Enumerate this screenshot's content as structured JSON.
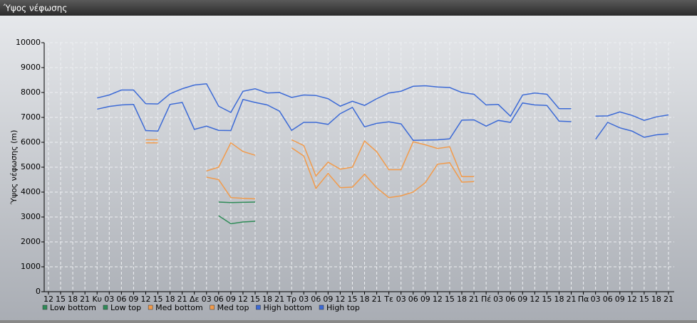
{
  "chart_data": {
    "type": "line",
    "title": "Ύψος νέφωσης",
    "y_label": "Ύψος νέφωσης (m)",
    "categories": [
      "12",
      "15",
      "18",
      "21",
      "Κυ",
      "03",
      "06",
      "09",
      "12",
      "15",
      "18",
      "21",
      "Δε",
      "03",
      "06",
      "09",
      "12",
      "15",
      "18",
      "21",
      "Τρ",
      "03",
      "06",
      "09",
      "12",
      "15",
      "18",
      "21",
      "Τε",
      "03",
      "06",
      "09",
      "12",
      "15",
      "18",
      "21",
      "Πέ",
      "03",
      "06",
      "09",
      "12",
      "15",
      "18",
      "21",
      "Πα",
      "03",
      "06",
      "09",
      "12",
      "15",
      "18",
      "21"
    ],
    "ylim": [
      0,
      10000
    ],
    "yticks": [
      0,
      1000,
      2000,
      3000,
      4000,
      5000,
      6000,
      7000,
      8000,
      9000,
      10000
    ],
    "grid": true,
    "legend": "bottom",
    "series": [
      {
        "name": "Low bottom",
        "color": "#2e8b57",
        "values": [
          null,
          null,
          null,
          null,
          null,
          null,
          null,
          null,
          null,
          null,
          null,
          null,
          null,
          null,
          3050,
          2730,
          2800,
          2830,
          null,
          null,
          null,
          null,
          null,
          null,
          null,
          null,
          null,
          null,
          null,
          null,
          null,
          null,
          null,
          null,
          null,
          null,
          null,
          null,
          null,
          null,
          null,
          null,
          null,
          null,
          null,
          null,
          null,
          null,
          null,
          null,
          null,
          null
        ]
      },
      {
        "name": "Low top",
        "color": "#2e8b57",
        "values": [
          null,
          null,
          null,
          null,
          null,
          null,
          null,
          null,
          null,
          null,
          null,
          null,
          null,
          null,
          3600,
          3580,
          3590,
          3600,
          null,
          null,
          null,
          null,
          null,
          null,
          null,
          null,
          null,
          null,
          null,
          null,
          null,
          null,
          null,
          null,
          null,
          null,
          null,
          null,
          null,
          null,
          null,
          null,
          null,
          null,
          null,
          null,
          null,
          null,
          null,
          null,
          null,
          null
        ]
      },
      {
        "name": "Med bottom",
        "color": "#f29b4b",
        "values": [
          null,
          null,
          null,
          null,
          null,
          null,
          null,
          null,
          5980,
          5980,
          null,
          null,
          null,
          4600,
          4500,
          3780,
          3750,
          3730,
          null,
          null,
          5780,
          5450,
          4150,
          4750,
          4180,
          4200,
          4720,
          4170,
          3780,
          3850,
          4000,
          4380,
          5120,
          5180,
          4400,
          4420,
          null,
          null,
          null,
          null,
          null,
          null,
          null,
          null,
          null,
          null,
          null,
          null,
          null,
          null,
          null,
          null
        ]
      },
      {
        "name": "Med top",
        "color": "#f29b4b",
        "values": [
          null,
          null,
          null,
          null,
          null,
          null,
          null,
          null,
          6100,
          6100,
          null,
          null,
          null,
          4850,
          5000,
          5980,
          5630,
          5480,
          null,
          null,
          6100,
          5870,
          4650,
          5200,
          4920,
          5000,
          6050,
          5620,
          4900,
          4900,
          6020,
          5900,
          5750,
          5820,
          4620,
          4620,
          null,
          null,
          null,
          null,
          null,
          null,
          null,
          null,
          null,
          null,
          null,
          null,
          null,
          null,
          null,
          null
        ]
      },
      {
        "name": "High bottom",
        "color": "#3c6ad6",
        "values": [
          null,
          null,
          null,
          null,
          7330,
          7440,
          7500,
          7520,
          6470,
          6450,
          7520,
          7600,
          6520,
          6650,
          6480,
          6470,
          7720,
          7600,
          7500,
          7250,
          6480,
          6800,
          6800,
          6720,
          7150,
          7400,
          6620,
          6760,
          6820,
          6740,
          6080,
          6090,
          6100,
          6140,
          6890,
          6900,
          6650,
          6880,
          6800,
          7580,
          7500,
          7480,
          6850,
          6830,
          null,
          6120,
          6800,
          6580,
          6450,
          6200,
          6300,
          6340
        ]
      },
      {
        "name": "High top",
        "color": "#3c6ad6",
        "values": [
          null,
          null,
          null,
          null,
          7780,
          7900,
          8100,
          8100,
          7550,
          7540,
          7950,
          8150,
          8300,
          8350,
          7450,
          7200,
          8050,
          8150,
          7980,
          8000,
          7800,
          7900,
          7880,
          7750,
          7450,
          7650,
          7480,
          7750,
          7980,
          8050,
          8250,
          8270,
          8220,
          8200,
          8000,
          7930,
          7500,
          7520,
          7050,
          7900,
          7980,
          7930,
          7350,
          7350,
          null,
          7050,
          7060,
          7220,
          7080,
          6880,
          7020,
          7100
        ]
      }
    ]
  }
}
